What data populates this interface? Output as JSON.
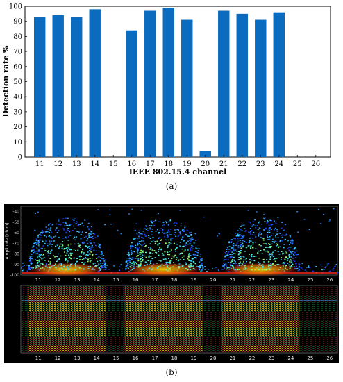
{
  "captions": {
    "a": "(a)",
    "b": "(b)"
  },
  "chart_data": [
    {
      "type": "bar",
      "title": "",
      "xlabel": "IEEE 802.15.4 channel",
      "ylabel": "Detection rate %",
      "categories": [
        "11",
        "12",
        "13",
        "14",
        "15",
        "16",
        "17",
        "18",
        "19",
        "20",
        "21",
        "22",
        "23",
        "24",
        "25",
        "26"
      ],
      "values": [
        93,
        94,
        93,
        98,
        0,
        84,
        97,
        99,
        91,
        4,
        97,
        95,
        91,
        96,
        0,
        0
      ],
      "ylim": [
        0,
        100
      ],
      "yticks": [
        "0",
        "10",
        "20",
        "30",
        "40",
        "50",
        "60",
        "70",
        "80",
        "90",
        "100"
      ],
      "grid": false,
      "legend": "none",
      "bar_color": "#0a6bbf"
    },
    {
      "type": "heatmap",
      "title": "",
      "subplots": [
        {
          "kind": "spectrum",
          "ylabel": "Amplitude [dB m]",
          "yticks": [
            "-40",
            "-50",
            "-60",
            "-70",
            "-80",
            "-90",
            "-100"
          ],
          "ylim": [
            -100,
            -35
          ],
          "xticks": [
            "11",
            "12",
            "13",
            "14",
            "15",
            "16",
            "17",
            "18",
            "19",
            "20",
            "21",
            "22",
            "23",
            "24",
            "25",
            "26"
          ],
          "active_channel_groups": [
            [
              "11",
              "14"
            ],
            [
              "16",
              "19"
            ],
            [
              "21",
              "24"
            ]
          ]
        },
        {
          "kind": "waterfall",
          "xticks": [
            "11",
            "12",
            "13",
            "14",
            "15",
            "16",
            "17",
            "18",
            "19",
            "20",
            "21",
            "22",
            "23",
            "24",
            "25",
            "26"
          ]
        }
      ],
      "background": "#000000"
    }
  ]
}
